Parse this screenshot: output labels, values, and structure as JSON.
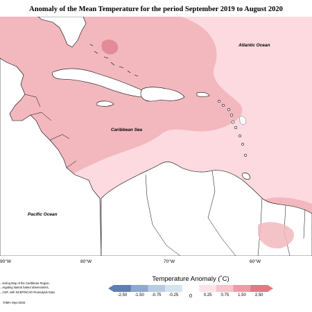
{
  "title": "Anomaly of the Mean Temperature for the period September 2019 to August 2020",
  "labels": {
    "atlantic": "Atlantic Ocean",
    "caribbean": "Caribbean Sea",
    "pacific": "Pacific Ocean"
  },
  "longitude_ticks": [
    "90°W",
    "80°W",
    "70°W",
    "60°W"
  ],
  "legend": {
    "title": "Temperature Anomaly (˚C)",
    "tick_labels": [
      "-2.50",
      "-1.50",
      "-0.75",
      "-0.25",
      "0",
      "0.25",
      "0.75",
      "1.50",
      "2.50"
    ],
    "colors": [
      "#5f7fb0",
      "#8ea8d0",
      "#b8cbe4",
      "#d5e3ee",
      "#ffffff",
      "#fde3e7",
      "#f6c4cb",
      "#ec9ca7",
      "#e47884"
    ]
  },
  "credit_lines": [
    "...itoring Map of the Caribbean Region.",
    "...regating station based observations,",
    "...CDF, with NCEP/NCAR Reanalysis Data"
  ],
  "copyright": "©IMH Sep-2020",
  "colors": {
    "anomaly_warm": "#f2b8be",
    "anomaly_mild": "#fcdadf",
    "anomaly_hot": "#e38b96",
    "land": "#ffffff",
    "coast": "#000000"
  }
}
